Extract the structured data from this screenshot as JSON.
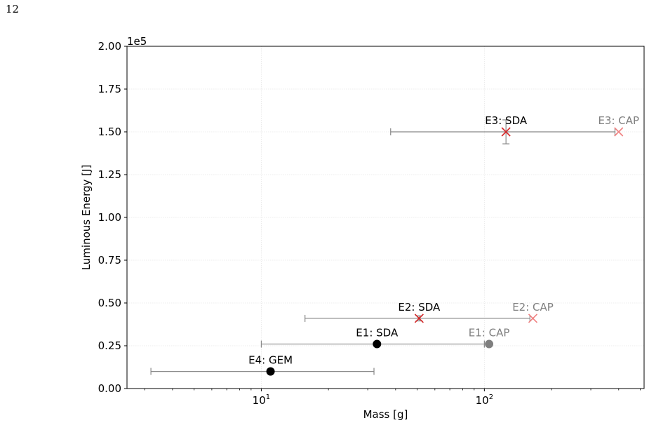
{
  "page": {
    "number": "12"
  },
  "chart_data": {
    "type": "scatter",
    "title": "",
    "xlabel": "Mass [g]",
    "ylabel": "Luminous Energy [J]",
    "x_scale": "log",
    "xlim": [
      2.5,
      520
    ],
    "ylim": [
      0,
      200000
    ],
    "y_multiplier_label": "1e5",
    "x_ticks": [
      {
        "value": 10,
        "base": "10",
        "exp": "1"
      },
      {
        "value": 100,
        "base": "10",
        "exp": "2"
      }
    ],
    "y_ticks": [
      {
        "value": 0,
        "label": "0.00"
      },
      {
        "value": 25000,
        "label": "0.25"
      },
      {
        "value": 50000,
        "label": "0.50"
      },
      {
        "value": 75000,
        "label": "0.75"
      },
      {
        "value": 100000,
        "label": "1.00"
      },
      {
        "value": 125000,
        "label": "1.25"
      },
      {
        "value": 150000,
        "label": "1.50"
      },
      {
        "value": 175000,
        "label": "1.75"
      },
      {
        "value": 200000,
        "label": "2.00"
      }
    ],
    "grid": true,
    "points": [
      {
        "label": "E1: SDA",
        "x": 33,
        "y": 26000,
        "marker": "circle",
        "color": "#000000",
        "x_err": [
          10,
          100
        ]
      },
      {
        "label": "E1: CAP",
        "x": 105,
        "y": 26000,
        "marker": "circle",
        "color": "#7f7f7f"
      },
      {
        "label": "E2: SDA",
        "x": 51,
        "y": 41000,
        "marker": "x",
        "color": "#d62728",
        "x_err": [
          15.7,
          160
        ],
        "y_err": [
          39500,
          42500
        ]
      },
      {
        "label": "E2: CAP",
        "x": 165,
        "y": 41000,
        "marker": "x",
        "color": "#f08080"
      },
      {
        "label": "E3: SDA",
        "x": 125,
        "y": 150000,
        "marker": "x",
        "color": "#d62728",
        "x_err": [
          38,
          385
        ],
        "y_err": [
          143000,
          157000
        ]
      },
      {
        "label": "E3: CAP",
        "x": 400,
        "y": 150000,
        "marker": "x",
        "color": "#f08080"
      },
      {
        "label": "E4: GEM",
        "x": 11,
        "y": 10000,
        "marker": "circle",
        "color": "#000000",
        "x_err": [
          3.2,
          32
        ]
      }
    ],
    "colors": {
      "errorbar": "#888888",
      "axis": "#000000",
      "grid": "#e6e6e6",
      "label_dark": "#000000",
      "label_faded": "#7f7f7f"
    }
  }
}
